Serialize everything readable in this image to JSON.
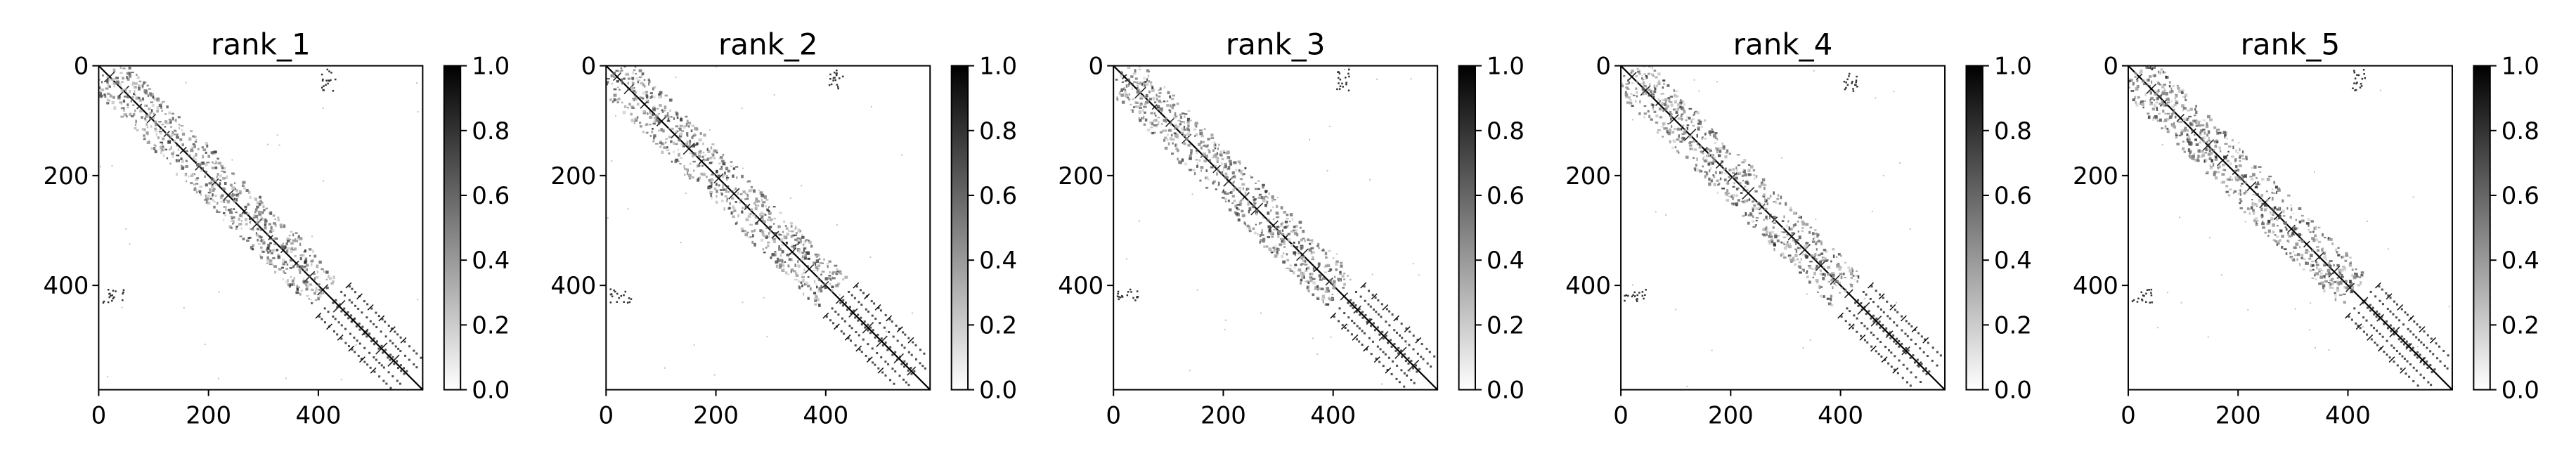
{
  "chart_data": [
    {
      "type": "heatmap",
      "title": "rank_1",
      "x_ticks": [
        0,
        200,
        400
      ],
      "y_ticks": [
        0,
        200,
        400
      ],
      "xlim": [
        0,
        590
      ],
      "ylim": [
        590,
        0
      ],
      "colorbar": {
        "min": 0.0,
        "max": 1.0,
        "ticks": [
          "0.0",
          "0.2",
          "0.4",
          "0.6",
          "0.8",
          "1.0"
        ],
        "colormap": "white-to-black"
      },
      "description": "contact map, dark main diagonal with scattered off-diagonal contacts"
    },
    {
      "type": "heatmap",
      "title": "rank_2",
      "x_ticks": [
        0,
        200,
        400
      ],
      "y_ticks": [
        0,
        200,
        400
      ],
      "xlim": [
        0,
        590
      ],
      "ylim": [
        590,
        0
      ],
      "colorbar": {
        "min": 0.0,
        "max": 1.0,
        "ticks": [
          "0.0",
          "0.2",
          "0.4",
          "0.6",
          "0.8",
          "1.0"
        ],
        "colormap": "white-to-black"
      }
    },
    {
      "type": "heatmap",
      "title": "rank_3",
      "x_ticks": [
        0,
        200,
        400
      ],
      "y_ticks": [
        0,
        200,
        400
      ],
      "xlim": [
        0,
        590
      ],
      "ylim": [
        590,
        0
      ],
      "colorbar": {
        "min": 0.0,
        "max": 1.0,
        "ticks": [
          "0.0",
          "0.2",
          "0.4",
          "0.6",
          "0.8",
          "1.0"
        ],
        "colormap": "white-to-black"
      }
    },
    {
      "type": "heatmap",
      "title": "rank_4",
      "x_ticks": [
        0,
        200,
        400
      ],
      "y_ticks": [
        0,
        200,
        400
      ],
      "xlim": [
        0,
        590
      ],
      "ylim": [
        590,
        0
      ],
      "colorbar": {
        "min": 0.0,
        "max": 1.0,
        "ticks": [
          "0.0",
          "0.2",
          "0.4",
          "0.6",
          "0.8",
          "1.0"
        ],
        "colormap": "white-to-black"
      }
    },
    {
      "type": "heatmap",
      "title": "rank_5",
      "x_ticks": [
        0,
        200,
        400
      ],
      "y_ticks": [
        0,
        200,
        400
      ],
      "xlim": [
        0,
        590
      ],
      "ylim": [
        590,
        0
      ],
      "colorbar": {
        "min": 0.0,
        "max": 1.0,
        "ticks": [
          "0.0",
          "0.2",
          "0.4",
          "0.6",
          "0.8",
          "1.0"
        ],
        "colormap": "white-to-black"
      }
    }
  ],
  "colors": {
    "ink": "#000000",
    "background": "#ffffff"
  }
}
